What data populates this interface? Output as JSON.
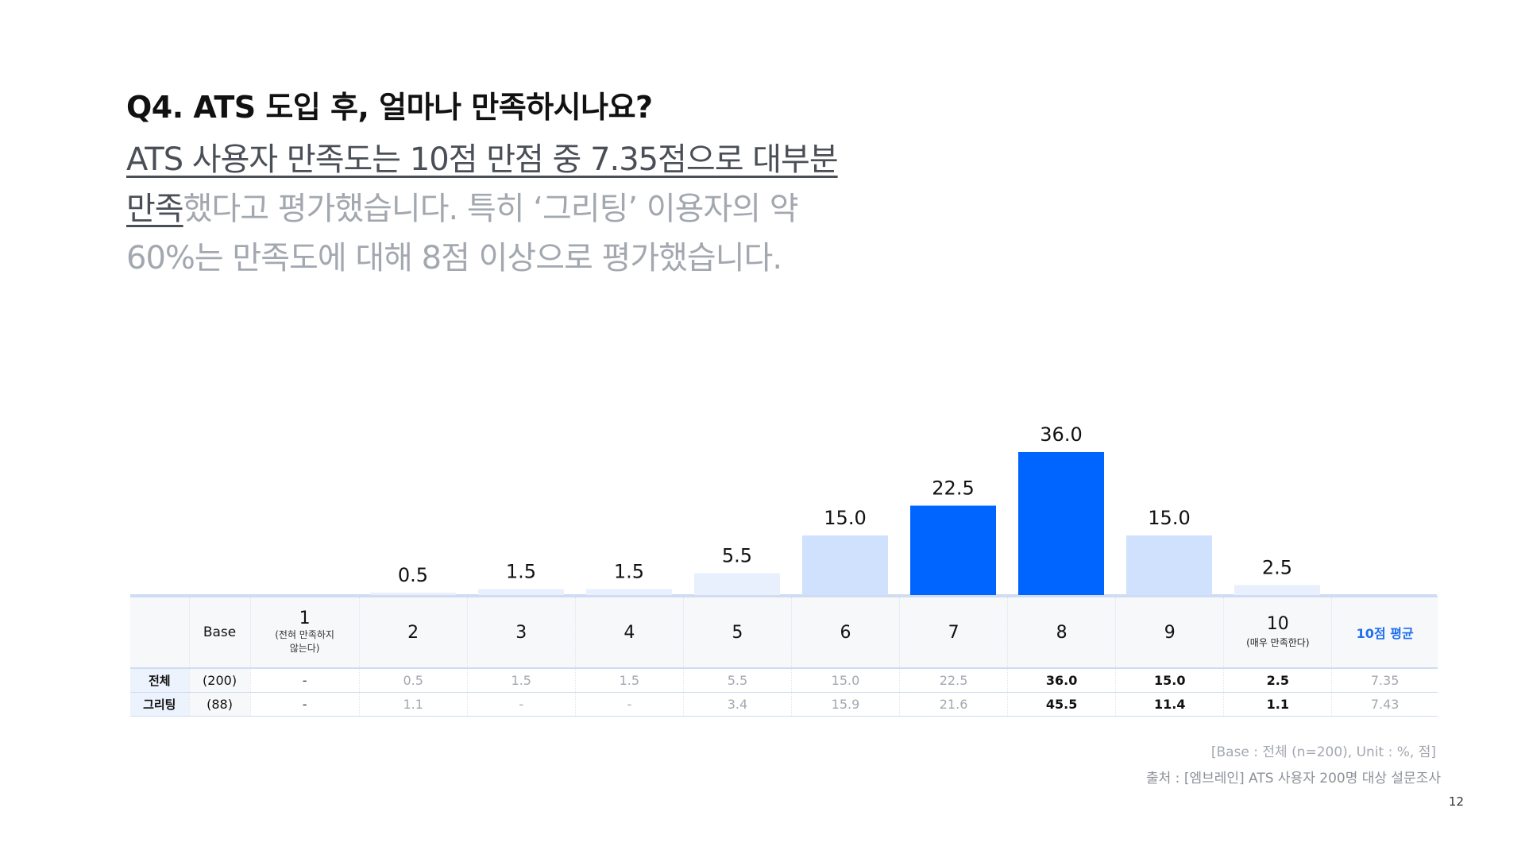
{
  "question": "Q4. ATS 도입 후, 얼마나 만족하시나요?",
  "summary": {
    "line1_highlight": "ATS 사용자 만족도는 10점 만점 중 7.35점으로 대부분",
    "line2_highlight": "만족",
    "line2_rest": "했다고 평가했습니다. 특히 ‘그리팅’ 이용자의 약",
    "line3": "60%는 만족도에 대해 8점 이상으로 평가했습니다."
  },
  "colors": {
    "dark": "#0064ff",
    "mid": "#cfe1fd",
    "light": "#e8f0fd",
    "baseline": "#cfdcf3",
    "accent_text": "#1e6ff0"
  },
  "chart_data": {
    "type": "bar",
    "categories": [
      "1",
      "2",
      "3",
      "4",
      "5",
      "6",
      "7",
      "8",
      "9",
      "10"
    ],
    "values": [
      null,
      0.5,
      1.5,
      1.5,
      5.5,
      15.0,
      22.5,
      36.0,
      15.0,
      2.5
    ],
    "labels": [
      "",
      "0.5",
      "1.5",
      "1.5",
      "5.5",
      "15.0",
      "22.5",
      "36.0",
      "15.0",
      "2.5"
    ],
    "shade": [
      "none",
      "light",
      "light",
      "light",
      "light",
      "mid",
      "dark",
      "dark",
      "mid",
      "light"
    ],
    "ylim": [
      0,
      40
    ],
    "title": "",
    "xlabel": "",
    "ylabel": ""
  },
  "table": {
    "header": {
      "base": "Base",
      "s1_num": "1",
      "s1_sub1": "(전혀 만족하지",
      "s1_sub2": "않는다)",
      "s2": "2",
      "s3": "3",
      "s4": "4",
      "s5": "5",
      "s6": "6",
      "s7": "7",
      "s8": "8",
      "s9": "9",
      "s10_num": "10",
      "s10_sub": "(매우 만족한다)",
      "avg": "10점 평균"
    },
    "rows": [
      {
        "label": "전체",
        "base": "(200)",
        "values": [
          "-",
          "0.5",
          "1.5",
          "1.5",
          "5.5",
          "15.0",
          "22.5",
          "36.0",
          "15.0",
          "2.5"
        ],
        "avg": "7.35"
      },
      {
        "label": "그리팅",
        "base": "(88)",
        "values": [
          "-",
          "1.1",
          "-",
          "-",
          "3.4",
          "15.9",
          "21.6",
          "45.5",
          "11.4",
          "1.1"
        ],
        "avg": "7.43"
      }
    ]
  },
  "note": "[Base : 전체 (n=200), Unit : %, 점]",
  "source": "출처 : [엠브레인] ATS 사용자 200명 대상 설문조사",
  "page_number": "12"
}
